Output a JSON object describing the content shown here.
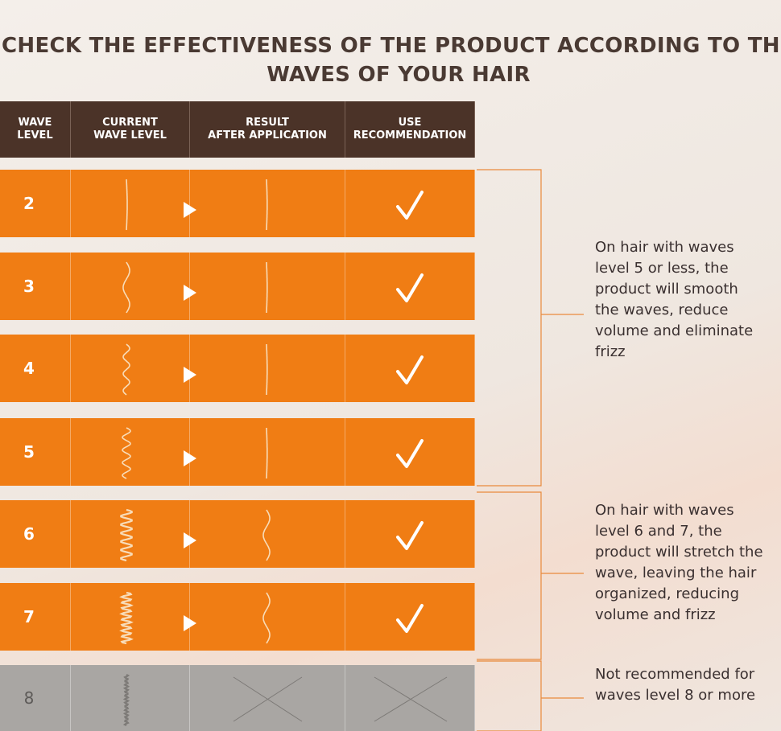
{
  "header": {
    "title_lines": [
      "CHECK THE EFFECTIVENESS OF THE PRODUCT ACCORDING TO TH",
      "WAVES OF YOUR HAIR"
    ]
  },
  "table": {
    "columns": [
      [
        "WAVE",
        "LEVEL"
      ],
      [
        "CURRENT",
        "WAVE LEVEL"
      ],
      [
        "RESULT",
        "AFTER APPLICATION"
      ],
      [
        "USE",
        "RECOMMENDATION"
      ]
    ],
    "rows": [
      "2",
      "3",
      "4",
      "5",
      "6",
      "7",
      "8"
    ]
  },
  "notes": [
    {
      "lines": [
        "On hair with waves",
        "level 5 or less, the",
        "product will smooth",
        "the waves, reduce",
        "volume and eliminate",
        "frizz"
      ]
    },
    {
      "lines": [
        "On hair with waves",
        "level 6 and 7, the",
        "product will stretch the",
        "wave, leaving the hair",
        "organized, reducing",
        "volume and frizz"
      ]
    },
    {
      "lines": [
        "Not recommended for",
        "waves level 8 or more"
      ]
    }
  ]
}
